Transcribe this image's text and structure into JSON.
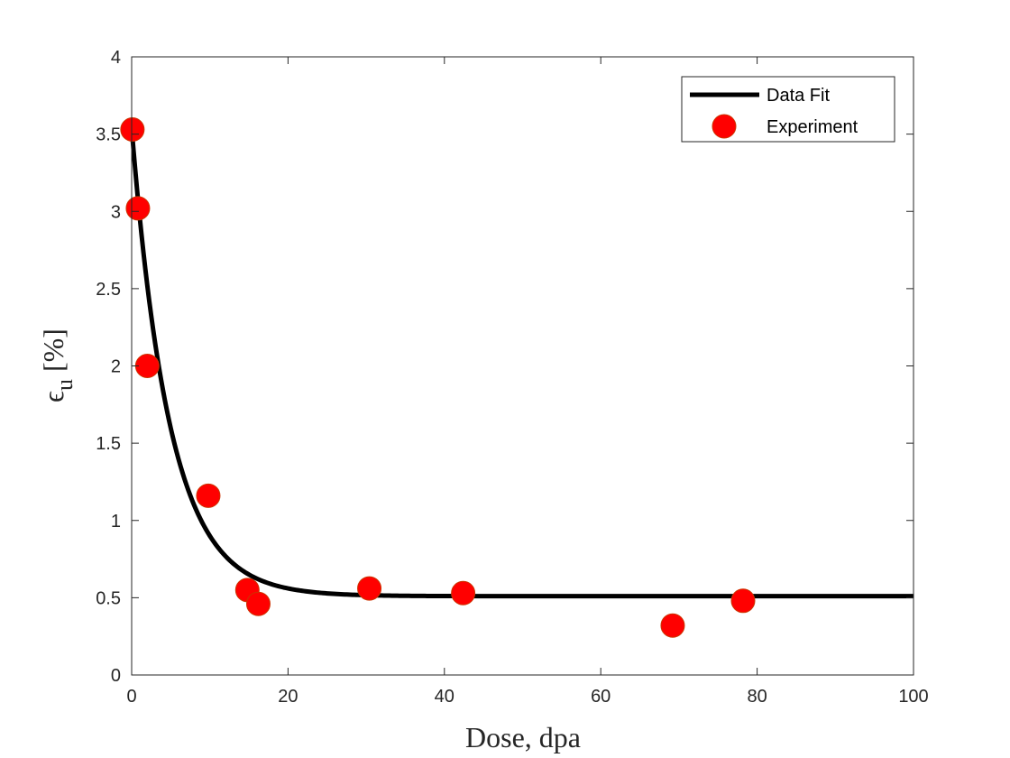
{
  "chart_data": {
    "type": "scatter",
    "xlabel": "Dose, dpa",
    "ylabel_symbol": "ϵ",
    "ylabel_subscript": "u",
    "ylabel_unit": "[%]",
    "xlim": [
      0,
      100
    ],
    "ylim": [
      0,
      4
    ],
    "xticks": [
      "0",
      "20",
      "40",
      "60",
      "80",
      "100"
    ],
    "yticks": [
      "0",
      "0.5",
      "1",
      "1.5",
      "2",
      "2.5",
      "3",
      "3.5",
      "4"
    ],
    "grid": false,
    "legend_position": "top-right",
    "series": [
      {
        "name": "Data Fit",
        "kind": "line",
        "color": "#000000",
        "model": {
          "form": "exponential-decay",
          "a": 3.03,
          "k": 0.205,
          "c": 0.51
        },
        "x_range": [
          0,
          100
        ]
      },
      {
        "name": "Experiment",
        "kind": "scatter",
        "color": "#ff0000",
        "x": [
          0.1,
          0.8,
          2.0,
          9.8,
          14.8,
          16.2,
          30.4,
          42.4,
          69.2,
          78.2
        ],
        "y": [
          3.53,
          3.02,
          2.0,
          1.16,
          0.55,
          0.46,
          0.56,
          0.53,
          0.32,
          0.48
        ]
      }
    ]
  }
}
